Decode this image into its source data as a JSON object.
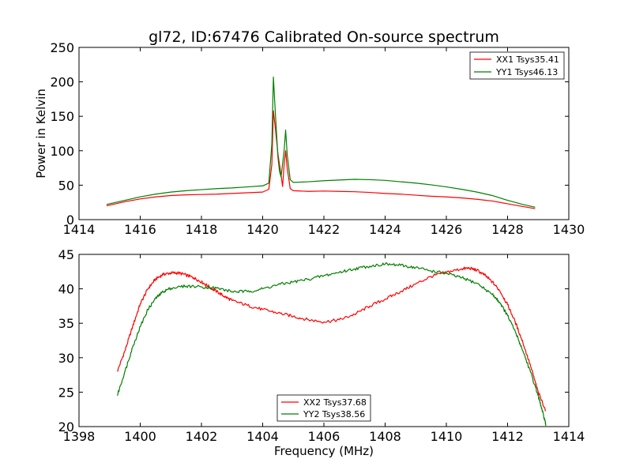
{
  "chart_data": [
    {
      "type": "line",
      "title": "gl72, ID:67476 Calibrated On-source spectrum",
      "xlabel": "",
      "ylabel": "Power in Kelvin",
      "xlim": [
        1414,
        1430
      ],
      "ylim": [
        0,
        250
      ],
      "xticks": [
        1414,
        1416,
        1418,
        1420,
        1422,
        1424,
        1426,
        1428,
        1430
      ],
      "yticks": [
        0,
        50,
        100,
        150,
        200,
        250
      ],
      "grid": false,
      "legend_position": "top-right",
      "series": [
        {
          "name": "XX1 Tsys35.41",
          "color": "#ff0000",
          "points": [
            [
              1414.9,
              20
            ],
            [
              1415.5,
              26
            ],
            [
              1416,
              30
            ],
            [
              1416.5,
              33
            ],
            [
              1417,
              35
            ],
            [
              1417.5,
              36
            ],
            [
              1418,
              36.5
            ],
            [
              1418.5,
              37
            ],
            [
              1419,
              38
            ],
            [
              1419.5,
              39
            ],
            [
              1420,
              40
            ],
            [
              1420.2,
              44
            ],
            [
              1420.3,
              80
            ],
            [
              1420.35,
              158
            ],
            [
              1420.42,
              130
            ],
            [
              1420.5,
              95
            ],
            [
              1420.6,
              65
            ],
            [
              1420.65,
              48
            ],
            [
              1420.7,
              80
            ],
            [
              1420.75,
              100
            ],
            [
              1420.8,
              75
            ],
            [
              1420.9,
              45
            ],
            [
              1421,
              42
            ],
            [
              1421.5,
              41
            ],
            [
              1422,
              41.5
            ],
            [
              1422.5,
              41
            ],
            [
              1423,
              40.5
            ],
            [
              1423.5,
              39.5
            ],
            [
              1424,
              38
            ],
            [
              1424.5,
              37
            ],
            [
              1425,
              35.5
            ],
            [
              1425.5,
              34
            ],
            [
              1426,
              33
            ],
            [
              1426.5,
              31.5
            ],
            [
              1427,
              29.5
            ],
            [
              1427.5,
              27
            ],
            [
              1428,
              23
            ],
            [
              1428.5,
              19
            ],
            [
              1428.9,
              16
            ]
          ]
        },
        {
          "name": "YY1 Tsys46.13",
          "color": "#008000",
          "points": [
            [
              1414.9,
              22
            ],
            [
              1415.5,
              28
            ],
            [
              1416,
              33
            ],
            [
              1416.5,
              37
            ],
            [
              1417,
              40
            ],
            [
              1417.5,
              42
            ],
            [
              1418,
              43.5
            ],
            [
              1418.5,
              45
            ],
            [
              1419,
              46
            ],
            [
              1419.5,
              47.5
            ],
            [
              1420,
              49
            ],
            [
              1420.2,
              53
            ],
            [
              1420.3,
              110
            ],
            [
              1420.35,
              207
            ],
            [
              1420.42,
              150
            ],
            [
              1420.5,
              90
            ],
            [
              1420.55,
              70
            ],
            [
              1420.6,
              62
            ],
            [
              1420.7,
              100
            ],
            [
              1420.75,
              130
            ],
            [
              1420.8,
              95
            ],
            [
              1420.9,
              58
            ],
            [
              1421,
              54
            ],
            [
              1421.5,
              55
            ],
            [
              1422,
              56.5
            ],
            [
              1422.5,
              57.5
            ],
            [
              1423,
              58.5
            ],
            [
              1423.5,
              58
            ],
            [
              1424,
              57
            ],
            [
              1424.5,
              55
            ],
            [
              1425,
              53
            ],
            [
              1425.5,
              50.5
            ],
            [
              1426,
              47.5
            ],
            [
              1426.5,
              44
            ],
            [
              1427,
              40
            ],
            [
              1427.5,
              35
            ],
            [
              1428,
              28
            ],
            [
              1428.5,
              22
            ],
            [
              1428.9,
              18
            ]
          ]
        }
      ]
    },
    {
      "type": "line",
      "title": "",
      "xlabel": "Frequency (MHz)",
      "ylabel": "",
      "xlim": [
        1398,
        1414
      ],
      "ylim": [
        20,
        45
      ],
      "xticks": [
        1398,
        1400,
        1402,
        1404,
        1406,
        1408,
        1410,
        1412,
        1414
      ],
      "yticks": [
        20,
        25,
        30,
        35,
        40,
        45
      ],
      "grid": false,
      "legend_position": "bottom-center",
      "series": [
        {
          "name": "XX2 Tsys37.68",
          "color": "#ff0000",
          "points": [
            [
              1399.25,
              28
            ],
            [
              1399.5,
              31
            ],
            [
              1399.75,
              34.5
            ],
            [
              1400,
              37.8
            ],
            [
              1400.25,
              40
            ],
            [
              1400.5,
              41.4
            ],
            [
              1400.75,
              42.1
            ],
            [
              1401,
              42.3
            ],
            [
              1401.25,
              42.3
            ],
            [
              1401.5,
              42
            ],
            [
              1401.75,
              41.6
            ],
            [
              1402,
              41
            ],
            [
              1402.25,
              40.3
            ],
            [
              1402.5,
              39.6
            ],
            [
              1402.75,
              38.9
            ],
            [
              1403,
              38.3
            ],
            [
              1403.5,
              37.6
            ],
            [
              1404,
              37
            ],
            [
              1404.5,
              36.5
            ],
            [
              1405,
              36
            ],
            [
              1405.5,
              35.5
            ],
            [
              1406,
              35.2
            ],
            [
              1406.5,
              35.5
            ],
            [
              1407,
              36.3
            ],
            [
              1407.5,
              37.5
            ],
            [
              1408,
              38.5
            ],
            [
              1408.5,
              39.6
            ],
            [
              1409,
              40.7
            ],
            [
              1409.5,
              41.8
            ],
            [
              1410,
              42.4
            ],
            [
              1410.5,
              42.9
            ],
            [
              1410.75,
              43
            ],
            [
              1411,
              42.7
            ],
            [
              1411.25,
              42
            ],
            [
              1411.5,
              41
            ],
            [
              1411.75,
              39.7
            ],
            [
              1412,
              37.7
            ],
            [
              1412.25,
              35.2
            ],
            [
              1412.5,
              32.2
            ],
            [
              1412.75,
              28.8
            ],
            [
              1413,
              25
            ],
            [
              1413.25,
              22.3
            ]
          ]
        },
        {
          "name": "YY2 Tsys38.56",
          "color": "#008000",
          "points": [
            [
              1399.25,
              24.5
            ],
            [
              1399.5,
              28
            ],
            [
              1399.75,
              31.5
            ],
            [
              1400,
              34.5
            ],
            [
              1400.25,
              37
            ],
            [
              1400.5,
              38.6
            ],
            [
              1400.75,
              39.6
            ],
            [
              1401,
              40.1
            ],
            [
              1401.5,
              40.4
            ],
            [
              1402,
              40.3
            ],
            [
              1402.5,
              40.1
            ],
            [
              1403,
              39.6
            ],
            [
              1403.5,
              39.6
            ],
            [
              1404,
              40
            ],
            [
              1404.5,
              40.6
            ],
            [
              1405,
              41
            ],
            [
              1405.5,
              41.4
            ],
            [
              1406,
              41.9
            ],
            [
              1406.5,
              42.4
            ],
            [
              1407,
              42.9
            ],
            [
              1407.5,
              43.3
            ],
            [
              1408,
              43.6
            ],
            [
              1408.5,
              43.4
            ],
            [
              1409,
              43.1
            ],
            [
              1409.5,
              42.6
            ],
            [
              1410,
              42.2
            ],
            [
              1410.5,
              41.6
            ],
            [
              1411,
              40.8
            ],
            [
              1411.5,
              39.2
            ],
            [
              1411.75,
              38
            ],
            [
              1412,
              36.1
            ],
            [
              1412.25,
              33.8
            ],
            [
              1412.5,
              31
            ],
            [
              1412.75,
              27.9
            ],
            [
              1413,
              24.5
            ],
            [
              1413.1,
              22.8
            ],
            [
              1413.2,
              21.2
            ],
            [
              1413.25,
              20.2
            ]
          ]
        }
      ]
    }
  ]
}
